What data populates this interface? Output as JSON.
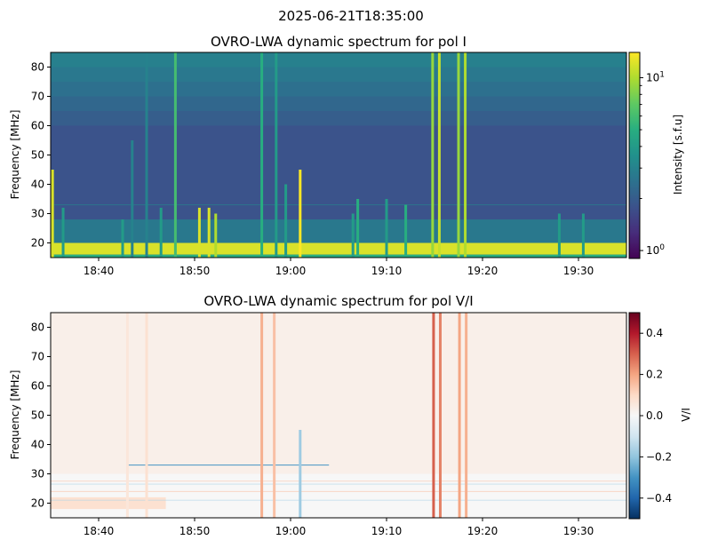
{
  "suptitle": "2025-06-21T18:35:00",
  "chart_data": [
    {
      "type": "heatmap",
      "title": "OVRO-LWA dynamic spectrum for pol I",
      "xlabel": "",
      "ylabel": "Frequency [MHz]",
      "x_start": "18:35",
      "x_end": "19:35",
      "xticks": [
        "18:40",
        "18:50",
        "19:00",
        "19:10",
        "19:20",
        "19:30"
      ],
      "xtick_minutes": [
        5,
        15,
        25,
        35,
        45,
        55
      ],
      "ylim": [
        15,
        85
      ],
      "yticks": [
        20,
        30,
        40,
        50,
        60,
        70,
        80
      ],
      "colorbar": {
        "label": "Intensity [s.f.u]",
        "scale": "log",
        "range": [
          0.9,
          14
        ],
        "ticks": [
          {
            "base": "10",
            "exp": "1",
            "value": 10
          },
          {
            "base": "10",
            "exp": "0",
            "value": 1
          }
        ],
        "colormap": "viridis",
        "colors": [
          "#440154",
          "#472d7b",
          "#3b528b",
          "#2c728e",
          "#21918c",
          "#28ae80",
          "#5ec962",
          "#addc30",
          "#fde725"
        ]
      },
      "background_level": 1.8,
      "low_band_level": 12,
      "bursts": [
        {
          "minute": 0.2,
          "fmax": 45,
          "level": 12
        },
        {
          "minute": 1.3,
          "fmax": 32,
          "level": 4
        },
        {
          "minute": 7.5,
          "fmax": 28,
          "level": 4
        },
        {
          "minute": 8.5,
          "fmax": 55,
          "level": 3
        },
        {
          "minute": 10.0,
          "fmax": 85,
          "level": 3
        },
        {
          "minute": 11.5,
          "fmax": 32,
          "level": 4
        },
        {
          "minute": 13.0,
          "fmax": 85,
          "level": 6
        },
        {
          "minute": 15.5,
          "fmax": 32,
          "level": 12
        },
        {
          "minute": 16.5,
          "fmax": 32,
          "level": 12
        },
        {
          "minute": 17.2,
          "fmax": 30,
          "level": 10
        },
        {
          "minute": 22.0,
          "fmax": 85,
          "level": 5
        },
        {
          "minute": 23.5,
          "fmax": 85,
          "level": 4
        },
        {
          "minute": 24.5,
          "fmax": 40,
          "level": 4
        },
        {
          "minute": 26.0,
          "fmax": 45,
          "level": 14
        },
        {
          "minute": 31.5,
          "fmax": 30,
          "level": 4
        },
        {
          "minute": 32.0,
          "fmax": 35,
          "level": 5
        },
        {
          "minute": 35.0,
          "fmax": 35,
          "level": 4
        },
        {
          "minute": 37.0,
          "fmax": 33,
          "level": 5
        },
        {
          "minute": 39.8,
          "fmax": 85,
          "level": 9
        },
        {
          "minute": 40.5,
          "fmax": 85,
          "level": 11
        },
        {
          "minute": 42.5,
          "fmax": 85,
          "level": 9
        },
        {
          "minute": 43.2,
          "fmax": 85,
          "level": 10
        },
        {
          "minute": 53.0,
          "fmax": 30,
          "level": 4
        },
        {
          "minute": 55.5,
          "fmax": 30,
          "level": 4
        }
      ]
    },
    {
      "type": "heatmap",
      "title": "OVRO-LWA dynamic spectrum for pol V/I",
      "xlabel": "",
      "ylabel": "Frequency [MHz]",
      "x_start": "18:35",
      "x_end": "19:35",
      "xticks": [
        "18:40",
        "18:50",
        "19:00",
        "19:10",
        "19:20",
        "19:30"
      ],
      "xtick_minutes": [
        5,
        15,
        25,
        35,
        45,
        55
      ],
      "ylim": [
        15,
        85
      ],
      "yticks": [
        20,
        30,
        40,
        50,
        60,
        70,
        80
      ],
      "colorbar": {
        "label": "V/I",
        "scale": "linear",
        "range": [
          -0.5,
          0.5
        ],
        "ticks": [
          {
            "text": "0.4",
            "value": 0.4
          },
          {
            "text": "0.2",
            "value": 0.2
          },
          {
            "text": "0.0",
            "value": 0.0
          },
          {
            "text": "−0.2",
            "value": -0.2
          },
          {
            "text": "−0.4",
            "value": -0.4
          }
        ],
        "colormap": "RdBu_r",
        "colors": [
          "#053061",
          "#2166ac",
          "#4393c3",
          "#92c5de",
          "#d1e5f0",
          "#f7f7f7",
          "#fddbc7",
          "#f4a582",
          "#d6604d",
          "#b2182b",
          "#67001f"
        ]
      },
      "background_level": 0.03,
      "bursts": [
        {
          "minute": 8.0,
          "fmax": 85,
          "level": 0.06
        },
        {
          "minute": 10.0,
          "fmax": 85,
          "level": 0.08
        },
        {
          "minute": 22.0,
          "fmax": 85,
          "level": 0.18
        },
        {
          "minute": 23.3,
          "fmax": 85,
          "level": 0.15
        },
        {
          "minute": 26.0,
          "fmax": 45,
          "level": -0.18
        },
        {
          "minute": 39.9,
          "fmax": 85,
          "level": 0.3
        },
        {
          "minute": 40.6,
          "fmax": 85,
          "level": 0.25
        },
        {
          "minute": 42.6,
          "fmax": 85,
          "level": 0.2
        },
        {
          "minute": 43.3,
          "fmax": 85,
          "level": 0.18
        }
      ]
    }
  ]
}
